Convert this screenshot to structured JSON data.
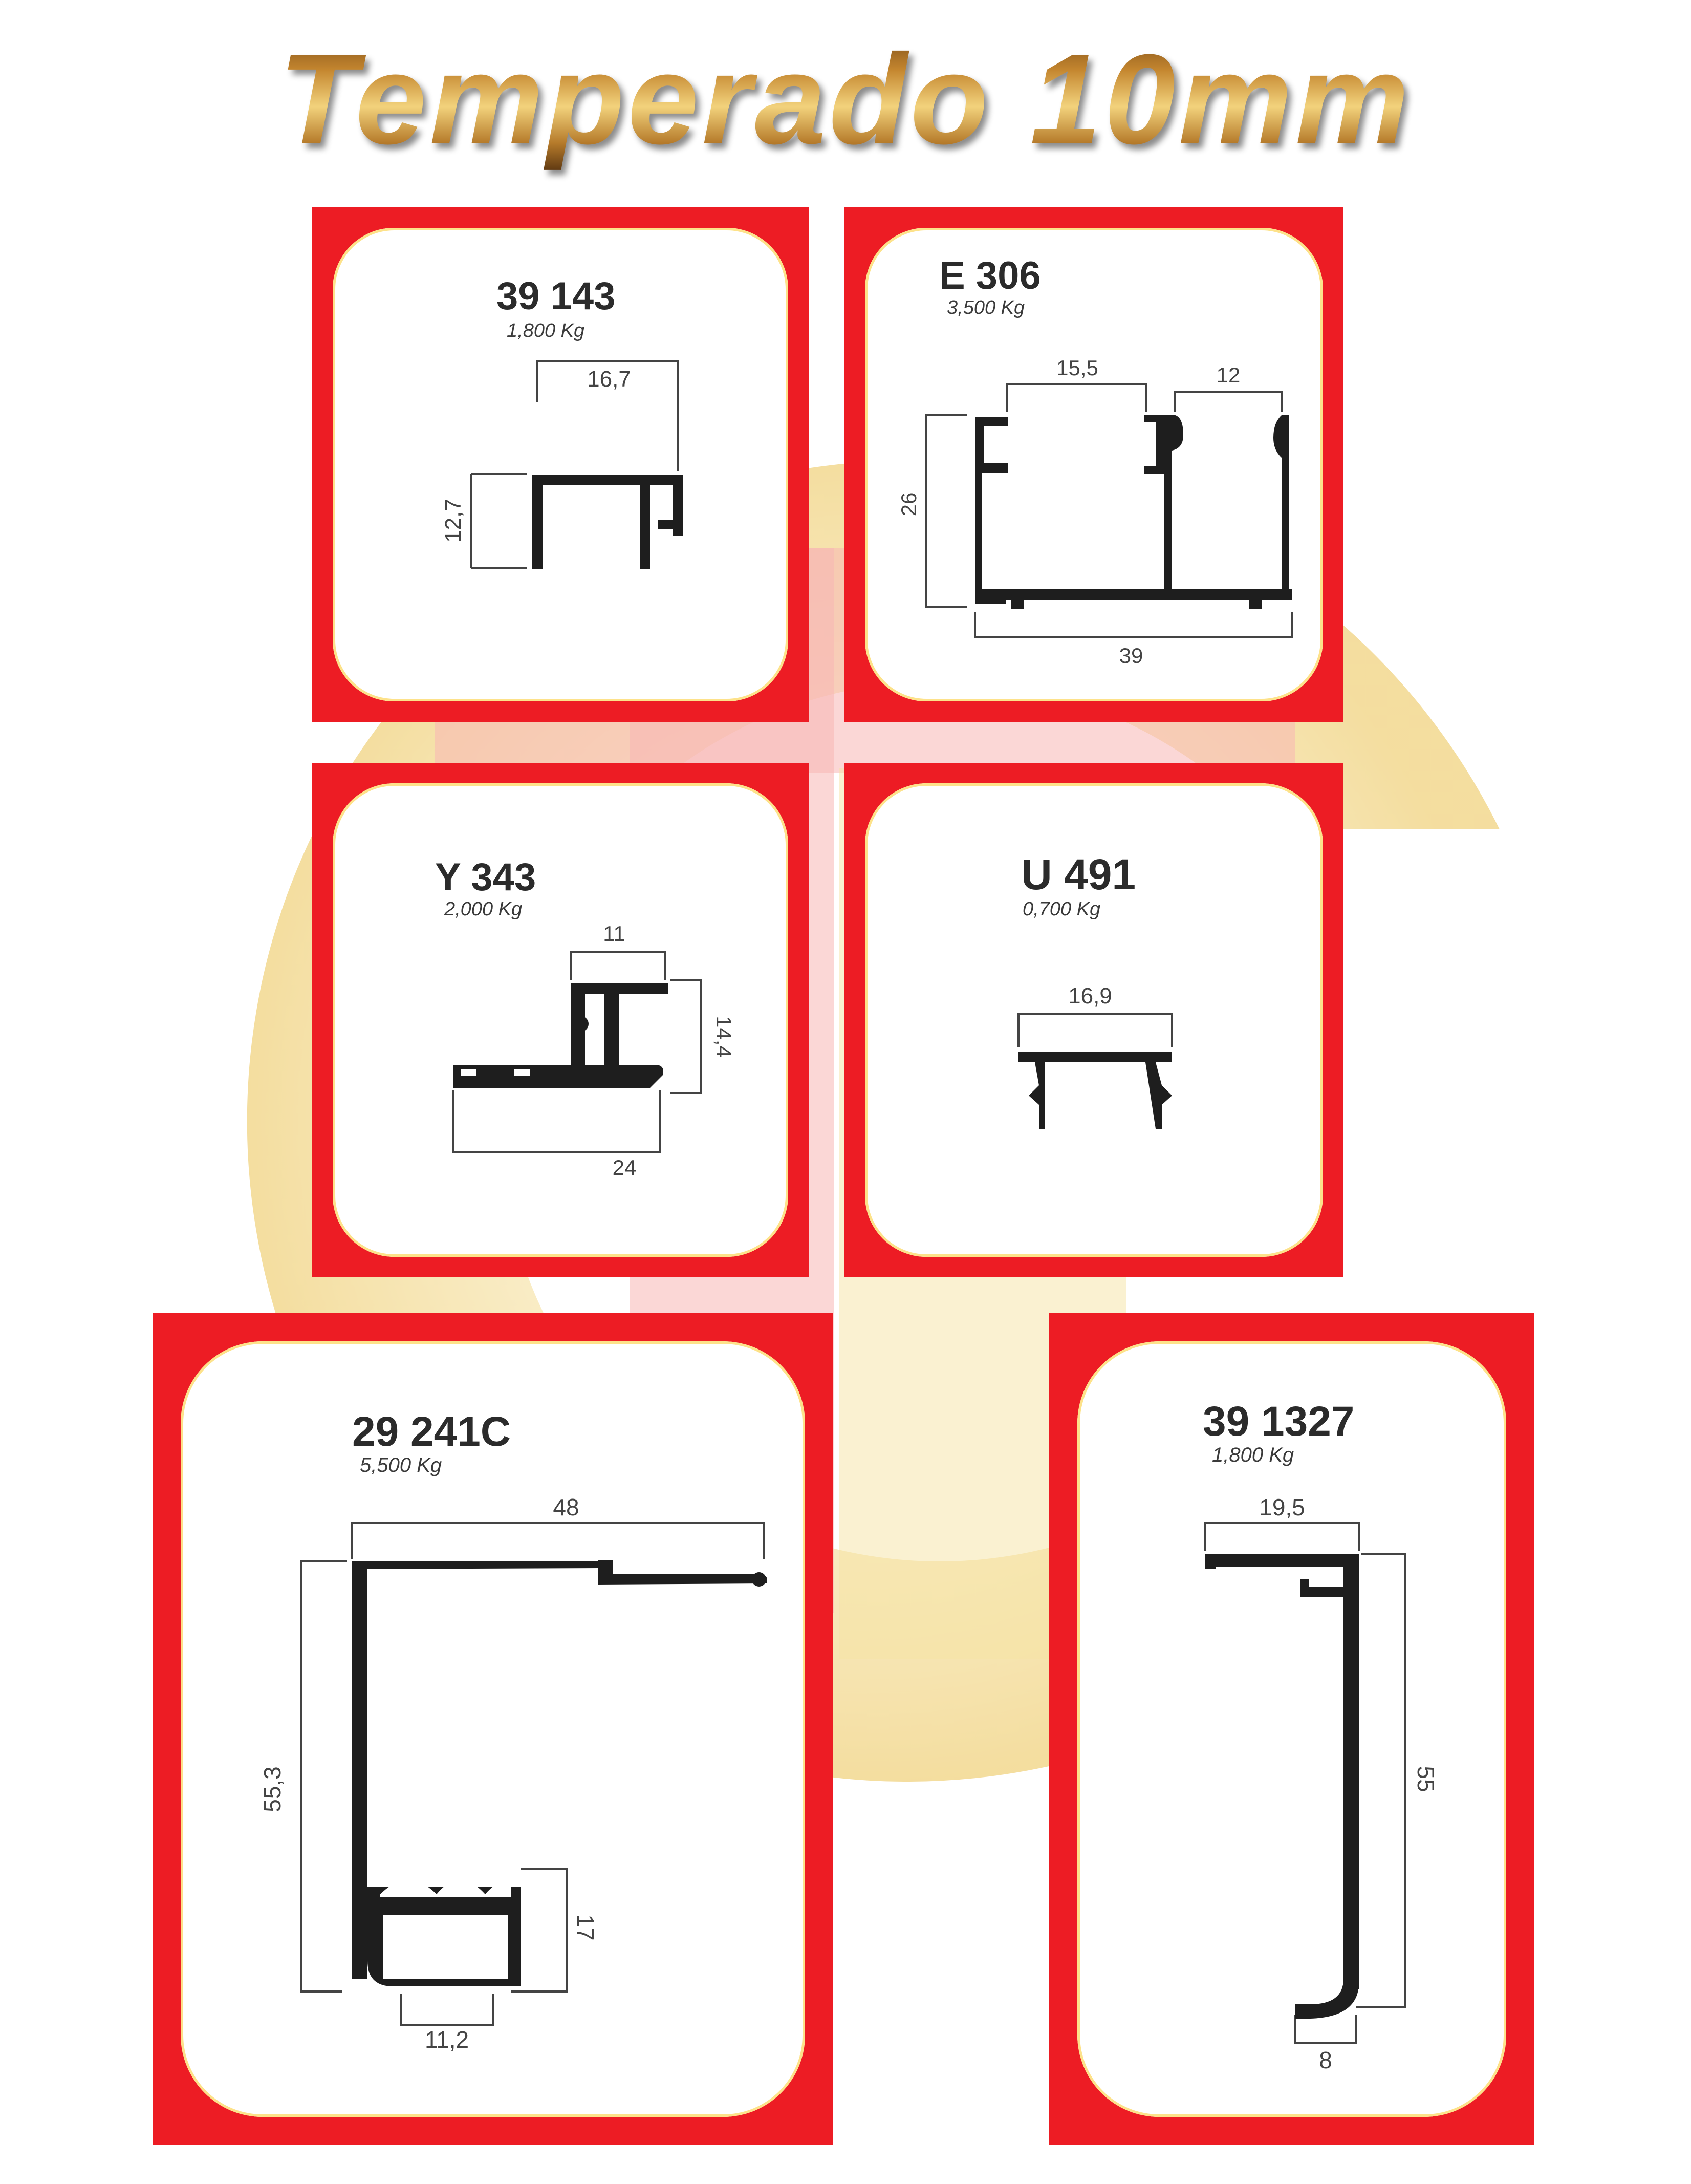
{
  "title": "Temperado 10mm",
  "colors": {
    "frame_red": "#ed1c24",
    "profile": "#1e1e1e",
    "watermark_gold": "#f3dc8c",
    "watermark_pink": "#f7b0b0"
  },
  "profiles": [
    {
      "code": "39 143",
      "weight": "1,800 Kg",
      "dims": [
        "16,7",
        "12,7"
      ]
    },
    {
      "code": "E 306",
      "weight": "3,500 Kg",
      "dims": [
        "15,5",
        "12",
        "26",
        "39"
      ]
    },
    {
      "code": "Y 343",
      "weight": "2,000 Kg",
      "dims": [
        "11",
        "14,4",
        "24"
      ]
    },
    {
      "code": "U 491",
      "weight": "0,700 Kg",
      "dims": [
        "16,9"
      ]
    },
    {
      "code": "29 241C",
      "weight": "5,500 Kg",
      "dims": [
        "48",
        "55,3",
        "17",
        "11,2"
      ]
    },
    {
      "code": "39 1327",
      "weight": "1,800 Kg",
      "dims": [
        "19,5",
        "55",
        "8"
      ]
    }
  ]
}
